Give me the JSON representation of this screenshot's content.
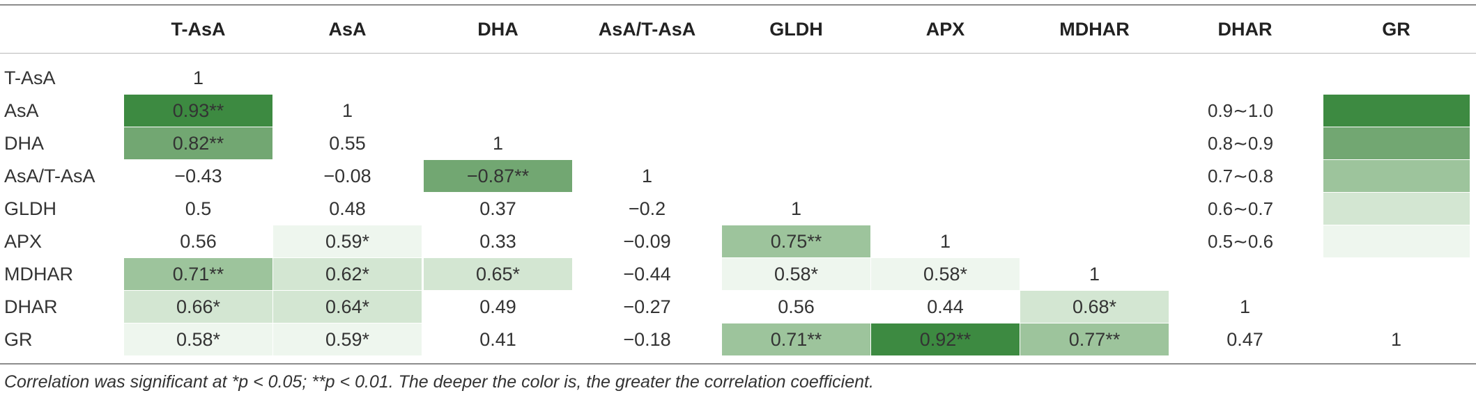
{
  "table": {
    "columns": [
      "T-AsA",
      "AsA",
      "DHA",
      "AsA/T-AsA",
      "GLDH",
      "APX",
      "MDHAR",
      "DHAR",
      "GR"
    ],
    "rows": [
      {
        "label": "T-AsA",
        "cells": [
          {
            "text": "1",
            "shade": 0
          }
        ]
      },
      {
        "label": "AsA",
        "cells": [
          {
            "text": "0.93**",
            "shade": 5
          },
          {
            "text": "1",
            "shade": 0
          }
        ]
      },
      {
        "label": "DHA",
        "cells": [
          {
            "text": "0.82**",
            "shade": 4
          },
          {
            "text": "0.55",
            "shade": 0
          },
          {
            "text": "1",
            "shade": 0
          }
        ]
      },
      {
        "label": "AsA/T-AsA",
        "cells": [
          {
            "text": "−0.43",
            "shade": 0
          },
          {
            "text": "−0.08",
            "shade": 0
          },
          {
            "text": "−0.87**",
            "shade": 4
          },
          {
            "text": "1",
            "shade": 0
          }
        ]
      },
      {
        "label": "GLDH",
        "cells": [
          {
            "text": "0.5",
            "shade": 0
          },
          {
            "text": "0.48",
            "shade": 0
          },
          {
            "text": "0.37",
            "shade": 0
          },
          {
            "text": "−0.2",
            "shade": 0
          },
          {
            "text": "1",
            "shade": 0
          }
        ]
      },
      {
        "label": "APX",
        "cells": [
          {
            "text": "0.56",
            "shade": 0
          },
          {
            "text": "0.59*",
            "shade": 1
          },
          {
            "text": "0.33",
            "shade": 0
          },
          {
            "text": "−0.09",
            "shade": 0
          },
          {
            "text": "0.75**",
            "shade": 3
          },
          {
            "text": "1",
            "shade": 0
          }
        ]
      },
      {
        "label": "MDHAR",
        "cells": [
          {
            "text": "0.71**",
            "shade": 3
          },
          {
            "text": "0.62*",
            "shade": 2
          },
          {
            "text": "0.65*",
            "shade": 2
          },
          {
            "text": "−0.44",
            "shade": 0
          },
          {
            "text": "0.58*",
            "shade": 1
          },
          {
            "text": "0.58*",
            "shade": 1
          },
          {
            "text": "1",
            "shade": 0
          }
        ]
      },
      {
        "label": "DHAR",
        "cells": [
          {
            "text": "0.66*",
            "shade": 2
          },
          {
            "text": "0.64*",
            "shade": 2
          },
          {
            "text": "0.49",
            "shade": 0
          },
          {
            "text": "−0.27",
            "shade": 0
          },
          {
            "text": "0.56",
            "shade": 0
          },
          {
            "text": "0.44",
            "shade": 0
          },
          {
            "text": "0.68*",
            "shade": 2
          },
          {
            "text": "1",
            "shade": 0
          }
        ]
      },
      {
        "label": "GR",
        "cells": [
          {
            "text": "0.58*",
            "shade": 1
          },
          {
            "text": "0.59*",
            "shade": 1
          },
          {
            "text": "0.41",
            "shade": 0
          },
          {
            "text": "−0.18",
            "shade": 0
          },
          {
            "text": "0.71**",
            "shade": 3
          },
          {
            "text": "0.92**",
            "shade": 5
          },
          {
            "text": "0.77**",
            "shade": 3
          },
          {
            "text": "0.47",
            "shade": 0
          },
          {
            "text": "1",
            "shade": 0
          }
        ]
      }
    ]
  },
  "legend": [
    {
      "range": "0.9∼1.0",
      "color": "#3d8a41"
    },
    {
      "range": "0.8∼0.9",
      "color": "#72a772"
    },
    {
      "range": "0.7∼0.8",
      "color": "#9dc49c"
    },
    {
      "range": "0.6∼0.7",
      "color": "#d3e6d2"
    },
    {
      "range": "0.5∼0.6",
      "color": "#eef6ee"
    }
  ],
  "shade_colors": [
    "",
    "#eef6ee",
    "#d3e6d2",
    "#9dc49c",
    "#72a772",
    "#3d8a41"
  ],
  "caption": "Correlation was significant at *p < 0.05; **p < 0.01. The deeper the color is, the greater the correlation coefficient."
}
